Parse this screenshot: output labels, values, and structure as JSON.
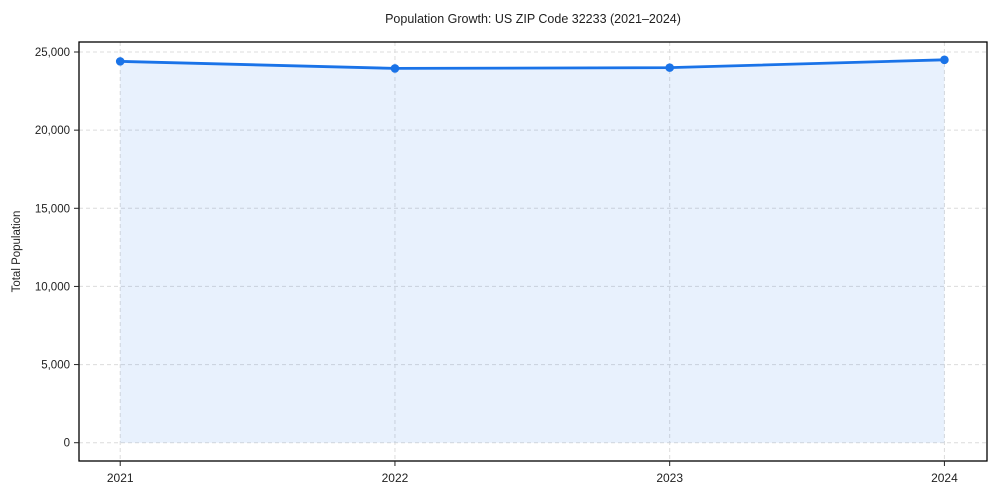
{
  "figure": {
    "title": "Population Growth: US ZIP Code 32233 (2021–2024)"
  },
  "chart_data": {
    "type": "area",
    "title": "Population Growth: US ZIP Code 32233 (2021–2024)",
    "xlabel": "",
    "ylabel": "Total Population",
    "x": [
      2021,
      2022,
      2023,
      2024
    ],
    "xtick_labels": [
      "2021",
      "2022",
      "2023",
      "2024"
    ],
    "series": [
      {
        "name": "Total Population",
        "values": [
          24400,
          23950,
          24000,
          24500
        ]
      }
    ],
    "yticks": [
      0,
      5000,
      10000,
      15000,
      20000,
      25000
    ],
    "ytick_labels": [
      "0",
      "5,000",
      "10,000",
      "15,000",
      "20,000",
      "25,000"
    ],
    "xlim": [
      2020.85,
      2024.155
    ],
    "ylim": [
      -1170,
      25640
    ],
    "grid": true,
    "grid_style": "dashed",
    "legend": false,
    "colors": {
      "line": "#1a73e8",
      "marker": "#1a73e8",
      "area_fill": "rgba(26,115,232,0.10)",
      "grid": "#dcdcdc",
      "spine": "#000000",
      "text": "#1f1f1f",
      "background": "#ffffff"
    }
  }
}
